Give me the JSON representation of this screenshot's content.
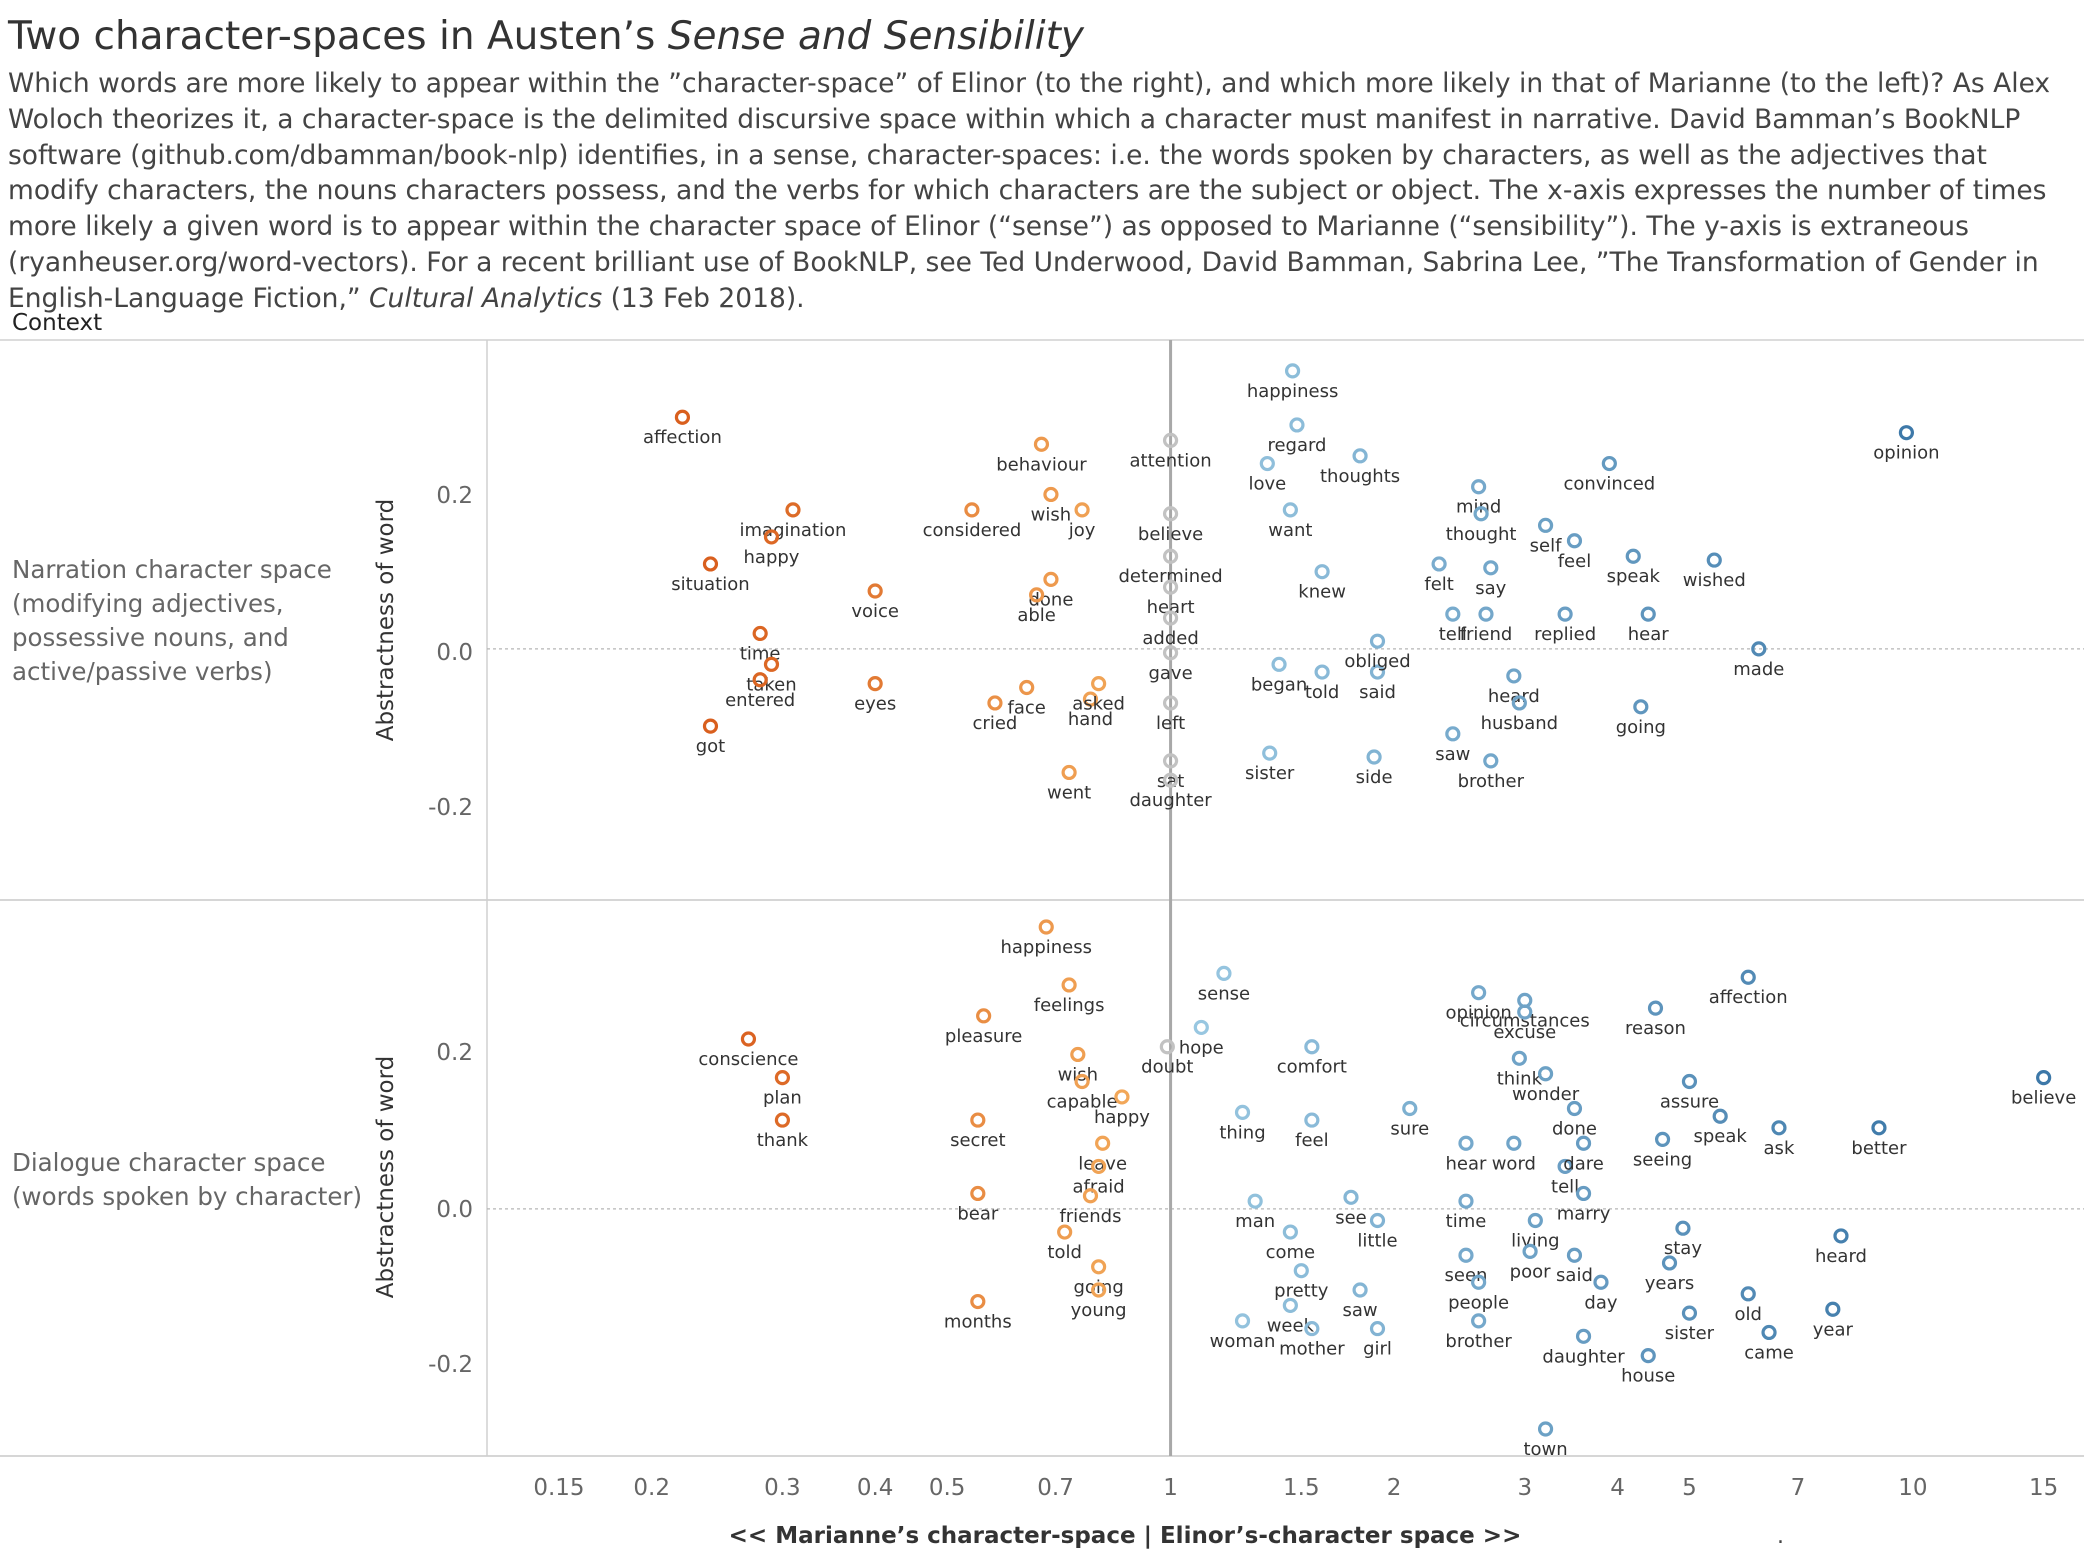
{
  "title_plain": "Two character-spaces in Austen’s ",
  "title_italic": "Sense and Sensibility",
  "description_main": "Which words are more likely to appear within the ”character-space” of Elinor (to the right), and which more likely in that of Marianne (to the left)? As Alex Woloch theorizes it, a character-space is the delimited discursive space within which a character must manifest in narrative. David Bamman’s BookNLP software (github.com/dbamman/book-nlp) identifies, in a sense, character-spaces: i.e. the words spoken by characters, as well as the adjectives that modify characters, the nouns characters possess, and the verbs for which characters are the subject or object. The x-axis expresses the number of times more likely a given word is to appear within the character space of Elinor (“sense”) as opposed to Marianne (“sensibility”). The y-axis is extraneous (ryanheuser.org/word-vectors). For a recent brilliant use of BookNLP, see Ted Underwood, David Bamman, Sabrina Lee, ”The Transformation of Gender in English-Language Fiction,” ",
  "description_italic": "Cultural Analytics",
  "description_end": " (13 Feb 2018).",
  "context_label": "Context",
  "stray_mark": ".",
  "colors": {
    "marianne_strong": "#d95f1e",
    "marianne_light": "#f5b060",
    "neutral": "#c2c2c2",
    "elinor_light": "#9ccae3",
    "elinor_strong": "#3d78a8"
  },
  "chart_data": {
    "type": "scatter",
    "xscale": "log",
    "xlabel": "<< Marianne’s character-space | Elinor’s-character space >>",
    "x_ticks": [
      "0.15",
      "0.2",
      "0.3",
      "0.4",
      "0.5",
      "0.7",
      "1",
      "1.5",
      "2",
      "3",
      "4",
      "5",
      "7",
      "10",
      "15"
    ],
    "xlim": [
      0.12,
      17
    ],
    "reference_x": 1,
    "facets": [
      {
        "row_label": [
          "Narration character space",
          "(modifying adjectives,",
          "possessive nouns, and",
          "active/passive verbs)"
        ],
        "ylabel": "Abstractness of word",
        "y_ticks": [
          "0.2",
          "0.0",
          "-0.2"
        ],
        "ylim": [
          -0.32,
          0.4
        ],
        "points": [
          {
            "word": "affection",
            "x": 0.22,
            "y": 0.3
          },
          {
            "word": "imagination",
            "x": 0.31,
            "y": 0.18
          },
          {
            "word": "happy",
            "x": 0.29,
            "y": 0.145
          },
          {
            "word": "situation",
            "x": 0.24,
            "y": 0.11
          },
          {
            "word": "voice",
            "x": 0.4,
            "y": 0.075
          },
          {
            "word": "time",
            "x": 0.28,
            "y": 0.02
          },
          {
            "word": "taken",
            "x": 0.29,
            "y": -0.02
          },
          {
            "word": "entered",
            "x": 0.28,
            "y": -0.04
          },
          {
            "word": "eyes",
            "x": 0.4,
            "y": -0.045
          },
          {
            "word": "got",
            "x": 0.24,
            "y": -0.1
          },
          {
            "word": "considered",
            "x": 0.54,
            "y": 0.18
          },
          {
            "word": "behaviour",
            "x": 0.67,
            "y": 0.265
          },
          {
            "word": "wish",
            "x": 0.69,
            "y": 0.2
          },
          {
            "word": "joy",
            "x": 0.76,
            "y": 0.18
          },
          {
            "word": "done",
            "x": 0.69,
            "y": 0.09
          },
          {
            "word": "able",
            "x": 0.66,
            "y": 0.07
          },
          {
            "word": "face",
            "x": 0.64,
            "y": -0.05
          },
          {
            "word": "cried",
            "x": 0.58,
            "y": -0.07
          },
          {
            "word": "hand",
            "x": 0.78,
            "y": -0.065
          },
          {
            "word": "asked",
            "x": 0.8,
            "y": -0.045
          },
          {
            "word": "went",
            "x": 0.73,
            "y": -0.16
          },
          {
            "word": "attention",
            "x": 1.0,
            "y": 0.27
          },
          {
            "word": "believe",
            "x": 1.0,
            "y": 0.175
          },
          {
            "word": "determined",
            "x": 1.0,
            "y": 0.12
          },
          {
            "word": "heart",
            "x": 1.0,
            "y": 0.08
          },
          {
            "word": "added",
            "x": 1.0,
            "y": 0.04
          },
          {
            "word": "gave",
            "x": 1.0,
            "y": -0.005
          },
          {
            "word": "left",
            "x": 1.0,
            "y": -0.07
          },
          {
            "word": "sat",
            "x": 1.0,
            "y": -0.145
          },
          {
            "word": "daughter",
            "x": 1.0,
            "y": -0.17
          },
          {
            "word": "happiness",
            "x": 1.46,
            "y": 0.36
          },
          {
            "word": "regard",
            "x": 1.48,
            "y": 0.29
          },
          {
            "word": "love",
            "x": 1.35,
            "y": 0.24
          },
          {
            "word": "thoughts",
            "x": 1.8,
            "y": 0.25
          },
          {
            "word": "want",
            "x": 1.45,
            "y": 0.18
          },
          {
            "word": "knew",
            "x": 1.6,
            "y": 0.1
          },
          {
            "word": "began",
            "x": 1.4,
            "y": -0.02
          },
          {
            "word": "told",
            "x": 1.6,
            "y": -0.03
          },
          {
            "word": "said",
            "x": 1.9,
            "y": -0.03
          },
          {
            "word": "sister",
            "x": 1.36,
            "y": -0.135
          },
          {
            "word": "obliged",
            "x": 1.9,
            "y": 0.01
          },
          {
            "word": "side",
            "x": 1.88,
            "y": -0.14
          },
          {
            "word": "mind",
            "x": 2.6,
            "y": 0.21
          },
          {
            "word": "thought",
            "x": 2.62,
            "y": 0.175
          },
          {
            "word": "felt",
            "x": 2.3,
            "y": 0.11
          },
          {
            "word": "tell",
            "x": 2.4,
            "y": 0.045
          },
          {
            "word": "friend",
            "x": 2.66,
            "y": 0.045
          },
          {
            "word": "replied",
            "x": 3.4,
            "y": 0.045
          },
          {
            "word": "say",
            "x": 2.7,
            "y": 0.105
          },
          {
            "word": "self",
            "x": 3.2,
            "y": 0.16
          },
          {
            "word": "feel",
            "x": 3.5,
            "y": 0.14
          },
          {
            "word": "heard",
            "x": 2.9,
            "y": -0.035
          },
          {
            "word": "husband",
            "x": 2.95,
            "y": -0.07
          },
          {
            "word": "saw",
            "x": 2.4,
            "y": -0.11
          },
          {
            "word": "brother",
            "x": 2.7,
            "y": -0.145
          },
          {
            "word": "convinced",
            "x": 3.9,
            "y": 0.24
          },
          {
            "word": "speak",
            "x": 4.2,
            "y": 0.12
          },
          {
            "word": "wished",
            "x": 5.4,
            "y": 0.115
          },
          {
            "word": "hear",
            "x": 4.4,
            "y": 0.045
          },
          {
            "word": "going",
            "x": 4.3,
            "y": -0.075
          },
          {
            "word": "made",
            "x": 6.2,
            "y": 0.0
          },
          {
            "word": "opinion",
            "x": 9.8,
            "y": 0.28
          }
        ]
      },
      {
        "row_label": [
          "Dialogue character space",
          "(words spoken by character)"
        ],
        "ylabel": "Abstractness of word",
        "y_ticks": [
          "0.2",
          "0.0",
          "-0.2"
        ],
        "ylim": [
          -0.32,
          0.4
        ],
        "points": [
          {
            "word": "conscience",
            "x": 0.27,
            "y": 0.22
          },
          {
            "word": "plan",
            "x": 0.3,
            "y": 0.17
          },
          {
            "word": "thank",
            "x": 0.3,
            "y": 0.115
          },
          {
            "word": "happiness",
            "x": 0.68,
            "y": 0.365
          },
          {
            "word": "feelings",
            "x": 0.73,
            "y": 0.29
          },
          {
            "word": "pleasure",
            "x": 0.56,
            "y": 0.25
          },
          {
            "word": "wish",
            "x": 0.75,
            "y": 0.2
          },
          {
            "word": "doubt",
            "x": 0.99,
            "y": 0.21
          },
          {
            "word": "capable",
            "x": 0.76,
            "y": 0.165
          },
          {
            "word": "happy",
            "x": 0.86,
            "y": 0.145
          },
          {
            "word": "secret",
            "x": 0.55,
            "y": 0.115
          },
          {
            "word": "leave",
            "x": 0.81,
            "y": 0.085
          },
          {
            "word": "afraid",
            "x": 0.8,
            "y": 0.055
          },
          {
            "word": "friends",
            "x": 0.78,
            "y": 0.017
          },
          {
            "word": "bear",
            "x": 0.55,
            "y": 0.02
          },
          {
            "word": "told",
            "x": 0.72,
            "y": -0.03
          },
          {
            "word": "going",
            "x": 0.8,
            "y": -0.075
          },
          {
            "word": "young",
            "x": 0.8,
            "y": -0.105
          },
          {
            "word": "months",
            "x": 0.55,
            "y": -0.12
          },
          {
            "word": "sense",
            "x": 1.18,
            "y": 0.305
          },
          {
            "word": "hope",
            "x": 1.1,
            "y": 0.235
          },
          {
            "word": "thing",
            "x": 1.25,
            "y": 0.125
          },
          {
            "word": "comfort",
            "x": 1.55,
            "y": 0.21
          },
          {
            "word": "feel",
            "x": 1.55,
            "y": 0.115
          },
          {
            "word": "man",
            "x": 1.3,
            "y": 0.01
          },
          {
            "word": "come",
            "x": 1.45,
            "y": -0.03
          },
          {
            "word": "see",
            "x": 1.75,
            "y": 0.015
          },
          {
            "word": "little",
            "x": 1.9,
            "y": -0.015
          },
          {
            "word": "pretty",
            "x": 1.5,
            "y": -0.08
          },
          {
            "word": "saw",
            "x": 1.8,
            "y": -0.105
          },
          {
            "word": "week",
            "x": 1.45,
            "y": -0.125
          },
          {
            "word": "woman",
            "x": 1.25,
            "y": -0.145
          },
          {
            "word": "mother",
            "x": 1.55,
            "y": -0.155
          },
          {
            "word": "girl",
            "x": 1.9,
            "y": -0.155
          },
          {
            "word": "sure",
            "x": 2.1,
            "y": 0.13
          },
          {
            "word": "opinion",
            "x": 2.6,
            "y": 0.28
          },
          {
            "word": "think",
            "x": 2.95,
            "y": 0.195
          },
          {
            "word": "hear",
            "x": 2.5,
            "y": 0.085
          },
          {
            "word": "time",
            "x": 2.5,
            "y": 0.01
          },
          {
            "word": "seen",
            "x": 2.5,
            "y": -0.06
          },
          {
            "word": "people",
            "x": 2.6,
            "y": -0.095
          },
          {
            "word": "brother",
            "x": 2.6,
            "y": -0.145
          },
          {
            "word": "circumstances",
            "x": 3.0,
            "y": 0.27
          },
          {
            "word": "excuse",
            "x": 3.0,
            "y": 0.255
          },
          {
            "word": "wonder",
            "x": 3.2,
            "y": 0.175
          },
          {
            "word": "done",
            "x": 3.5,
            "y": 0.13
          },
          {
            "word": "word",
            "x": 2.9,
            "y": 0.085
          },
          {
            "word": "tell",
            "x": 3.4,
            "y": 0.055
          },
          {
            "word": "dare",
            "x": 3.6,
            "y": 0.085
          },
          {
            "word": "living",
            "x": 3.1,
            "y": -0.015
          },
          {
            "word": "poor",
            "x": 3.05,
            "y": -0.055
          },
          {
            "word": "said",
            "x": 3.5,
            "y": -0.06
          },
          {
            "word": "day",
            "x": 3.8,
            "y": -0.095
          },
          {
            "word": "marry",
            "x": 3.6,
            "y": 0.02
          },
          {
            "word": "reason",
            "x": 4.5,
            "y": 0.26
          },
          {
            "word": "assure",
            "x": 5.0,
            "y": 0.165
          },
          {
            "word": "speak",
            "x": 5.5,
            "y": 0.12
          },
          {
            "word": "seeing",
            "x": 4.6,
            "y": 0.09
          },
          {
            "word": "stay",
            "x": 4.9,
            "y": -0.025
          },
          {
            "word": "years",
            "x": 4.7,
            "y": -0.07
          },
          {
            "word": "sister",
            "x": 5.0,
            "y": -0.135
          },
          {
            "word": "daughter",
            "x": 3.6,
            "y": -0.165
          },
          {
            "word": "house",
            "x": 4.4,
            "y": -0.19
          },
          {
            "word": "town",
            "x": 3.2,
            "y": -0.285
          },
          {
            "word": "affection",
            "x": 6.0,
            "y": 0.3
          },
          {
            "word": "ask",
            "x": 6.6,
            "y": 0.105
          },
          {
            "word": "better",
            "x": 9.0,
            "y": 0.105
          },
          {
            "word": "heard",
            "x": 8.0,
            "y": -0.035
          },
          {
            "word": "old",
            "x": 6.0,
            "y": -0.11
          },
          {
            "word": "year",
            "x": 7.8,
            "y": -0.13
          },
          {
            "word": "came",
            "x": 6.4,
            "y": -0.16
          },
          {
            "word": "believe",
            "x": 15.0,
            "y": 0.17
          }
        ]
      }
    ]
  }
}
